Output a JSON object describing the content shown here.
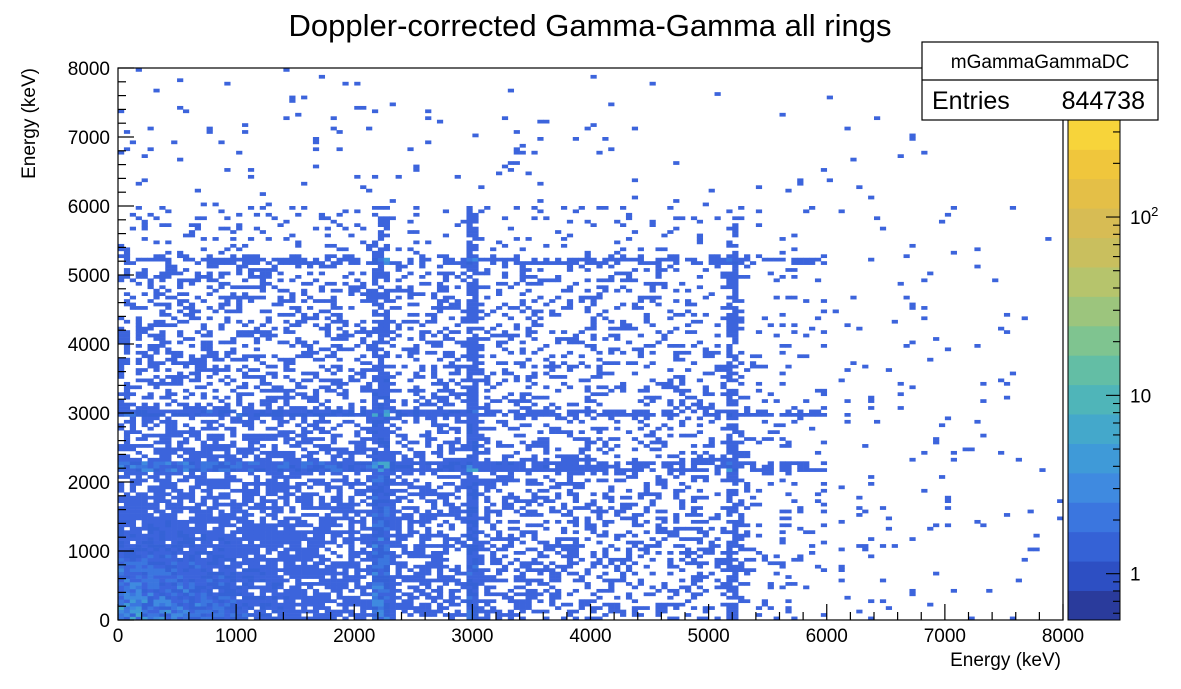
{
  "chart_data": {
    "type": "heatmap",
    "title": "Doppler-corrected Gamma-Gamma all rings",
    "xlabel": "Energy (keV)",
    "ylabel": "Energy (keV)",
    "xlim": [
      0,
      8000
    ],
    "ylim": [
      0,
      8000
    ],
    "x_ticks": [
      0,
      1000,
      2000,
      3000,
      4000,
      5000,
      6000,
      7000,
      8000
    ],
    "y_ticks": [
      0,
      1000,
      2000,
      3000,
      4000,
      5000,
      6000,
      7000,
      8000
    ],
    "x_tick_labels": [
      "0",
      "1000",
      "2000",
      "3000",
      "4000",
      "5000",
      "6000",
      "7000",
      "8000"
    ],
    "y_tick_labels": [
      "0",
      "1000",
      "2000",
      "3000",
      "4000",
      "5000",
      "6000",
      "7000",
      "8000"
    ],
    "z_scale": "log",
    "zlim": [
      0.55,
      350
    ],
    "z_major_ticks": [
      1,
      10,
      100
    ],
    "z_tick_labels": [
      "1",
      "10"
    ],
    "z_tick_label_power": {
      "base": "10",
      "exponent": "2"
    },
    "colors": {
      "palette": [
        "#2a3b9c",
        "#2d4fc3",
        "#3562d6",
        "#3b76df",
        "#3f8ae0",
        "#3f9ad8",
        "#44a8cb",
        "#4fb5b9",
        "#63bea5",
        "#7fc490",
        "#9cc57d",
        "#b6c46c",
        "#c9bf5e",
        "#d7bc54",
        "#e4bf47",
        "#f0c63c",
        "#f7d43a"
      ],
      "scatter": "#3c64dc",
      "background": "#ffffff"
    },
    "stats_box": {
      "name": "mGammaGammaDC",
      "entries_label": "Entries",
      "entries_value": "844738"
    },
    "description_features": {
      "diagonal_lines_keV": [
        2230,
        3000,
        5200
      ],
      "dense_region_keV": [
        0,
        5300
      ]
    }
  }
}
